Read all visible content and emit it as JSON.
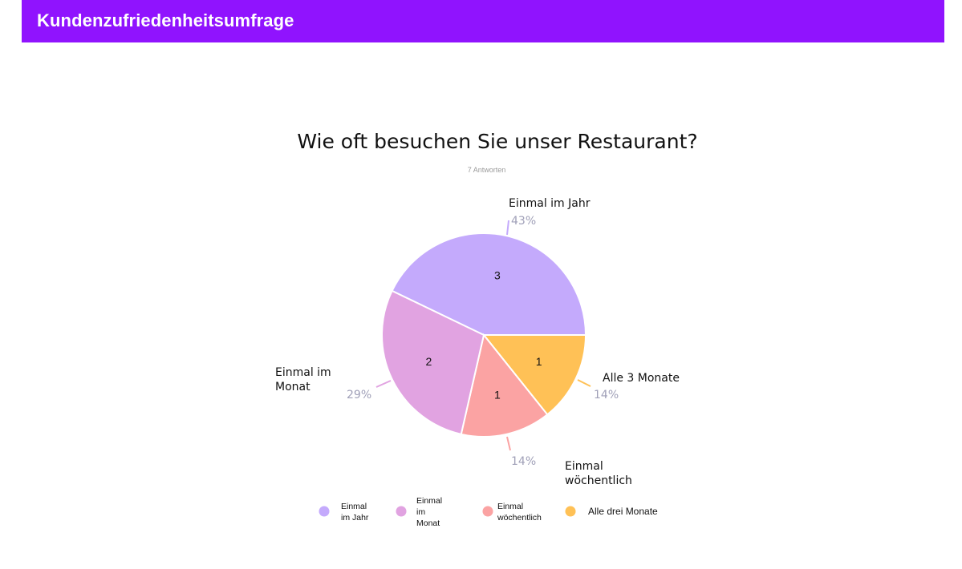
{
  "header": {
    "title": "Kundenzufriedenheitsumfrage",
    "color": "#9013fe"
  },
  "chart_data": {
    "type": "pie",
    "title": "Wie oft besuchen Sie unser Restaurant?",
    "subtitle": "7 Antworten",
    "total": 7,
    "slices": [
      {
        "label": "Einmal im Jahr",
        "label_lines": [
          "Einmal im Jahr"
        ],
        "value": 3,
        "percent": "43%",
        "color": "#c4aafc"
      },
      {
        "label": "Alle 3 Monate",
        "label_lines": [
          "Alle 3 Monate"
        ],
        "value": 1,
        "percent": "14%",
        "color": "#ffc156"
      },
      {
        "label": "Einmal wöchentlich",
        "label_lines": [
          "Einmal",
          "wöchentlich"
        ],
        "value": 1,
        "percent": "14%",
        "color": "#fba3a3"
      },
      {
        "label": "Einmal im Monat",
        "label_lines": [
          "Einmal im",
          "Monat"
        ],
        "value": 2,
        "percent": "29%",
        "color": "#e1a3e1"
      }
    ],
    "legend": [
      {
        "lines": [
          "Einmal",
          "im Jahr"
        ],
        "color": "#c4aafc"
      },
      {
        "lines": [
          "Einmal",
          "im",
          "Monat"
        ],
        "color": "#e1a3e1"
      },
      {
        "lines": [
          "Einmal",
          "wöchentlich"
        ],
        "color": "#fba3a3"
      },
      {
        "lines": [
          "Alle drei Monate"
        ],
        "color": "#ffc156"
      }
    ],
    "legend_position": "bottom"
  }
}
